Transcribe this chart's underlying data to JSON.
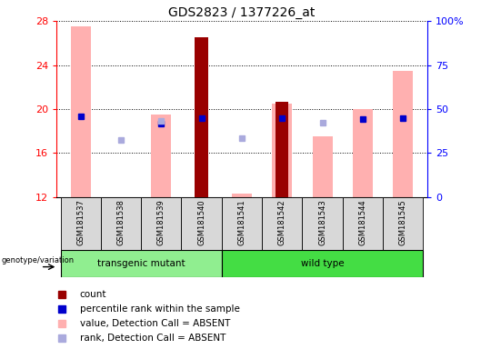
{
  "title": "GDS2823 / 1377226_at",
  "samples": [
    "GSM181537",
    "GSM181538",
    "GSM181539",
    "GSM181540",
    "GSM181541",
    "GSM181542",
    "GSM181543",
    "GSM181544",
    "GSM181545"
  ],
  "ylim": [
    12,
    28
  ],
  "yticks": [
    12,
    16,
    20,
    24,
    28
  ],
  "y2labels": [
    "0",
    "25",
    "50",
    "75",
    "100%"
  ],
  "bar_values_pink": [
    27.5,
    null,
    19.5,
    null,
    12.3,
    20.5,
    17.5,
    20.0,
    23.5
  ],
  "bar_values_darkred": [
    null,
    null,
    null,
    26.5,
    null,
    20.7,
    null,
    null,
    null
  ],
  "rank_squares_blue": [
    19.3,
    null,
    18.7,
    19.2,
    null,
    19.2,
    null,
    19.1,
    19.2
  ],
  "rank_squares_lightblue": [
    null,
    17.2,
    18.9,
    null,
    17.4,
    null,
    18.8,
    null,
    null
  ],
  "transgenic_color": "#90ee90",
  "wildtype_color": "#44dd44",
  "bar_color_pink": "#ffb0b0",
  "bar_color_darkred": "#990000",
  "square_color_blue": "#0000cc",
  "square_color_lightblue": "#aaaadd",
  "title_fontsize": 10,
  "tick_fontsize": 8,
  "label_fontsize": 7,
  "legend_fontsize": 7.5
}
